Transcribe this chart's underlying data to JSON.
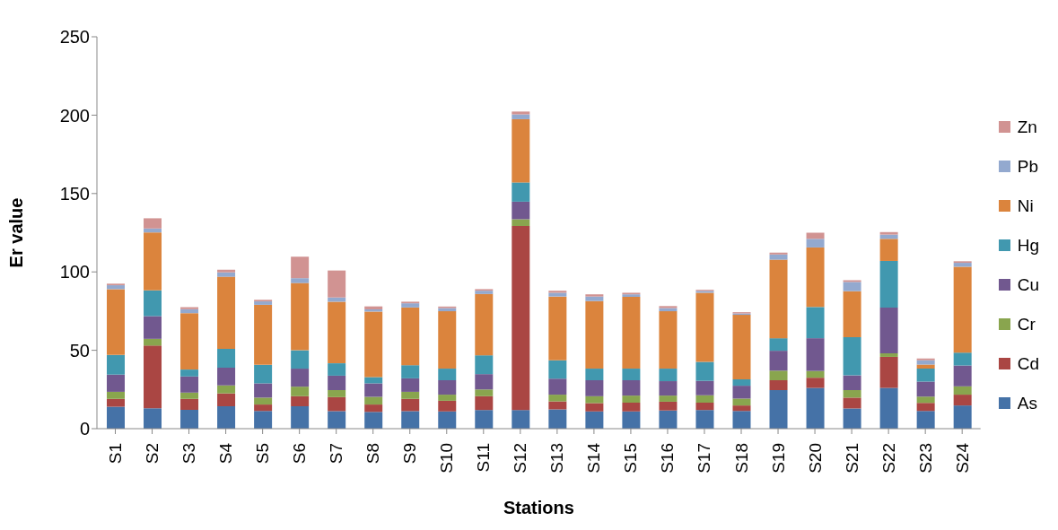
{
  "chart_data": {
    "type": "bar",
    "stacked": true,
    "xlabel": "Stations",
    "ylabel": "Er value",
    "categories": [
      "S1",
      "S2",
      "S3",
      "S4",
      "S5",
      "S6",
      "S7",
      "S8",
      "S9",
      "S10",
      "S11",
      "S12",
      "S13",
      "S14",
      "S15",
      "S16",
      "S17",
      "S18",
      "S19",
      "S20",
      "S21",
      "S22",
      "S23",
      "S24"
    ],
    "series": [
      {
        "name": "As",
        "color": "#4572a7",
        "values": [
          14,
          13,
          12,
          14.3,
          11.3,
          14.3,
          11.2,
          10.7,
          11.2,
          11,
          11.9,
          11.9,
          12.3,
          11,
          11,
          11.6,
          11.9,
          11.3,
          24.6,
          26,
          12.9,
          26,
          11.3,
          14.8
        ]
      },
      {
        "name": "Cd",
        "color": "#aa4643",
        "values": [
          5,
          40,
          7,
          8.2,
          4.1,
          6.4,
          8.9,
          4.7,
          7.8,
          6.8,
          8.8,
          117.4,
          5.1,
          5.3,
          5.6,
          5.6,
          4.7,
          3.5,
          6.3,
          6.5,
          6.9,
          19.8,
          5.1,
          6.9
        ]
      },
      {
        "name": "Cr",
        "color": "#89a54e",
        "values": [
          4.5,
          4.3,
          4,
          5.1,
          4.4,
          6.1,
          4.5,
          4.9,
          4.5,
          3.9,
          4.3,
          4.3,
          4.3,
          4.4,
          4.5,
          3.9,
          4.7,
          4.4,
          6.1,
          4.3,
          4.8,
          2.3,
          4.1,
          5.3
        ]
      },
      {
        "name": "Cu",
        "color": "#71588f",
        "values": [
          11,
          14.5,
          10.3,
          11.3,
          9.1,
          11.5,
          9.2,
          8.6,
          8.6,
          9.2,
          9.8,
          11.2,
          10.2,
          10.2,
          9.8,
          9.2,
          9.2,
          8.2,
          12.7,
          20.9,
          9.4,
          29.2,
          9.6,
          13.3
        ]
      },
      {
        "name": "Hg",
        "color": "#4198af",
        "values": [
          12.5,
          16.4,
          4.4,
          12,
          11.8,
          11.7,
          7.9,
          4,
          8.4,
          7.4,
          12,
          12.3,
          11.7,
          7.4,
          7.4,
          8,
          12.1,
          4.1,
          8,
          19.9,
          24.3,
          29.7,
          8.2,
          8.2
        ]
      },
      {
        "name": "Ni",
        "color": "#db843d",
        "values": [
          42,
          37,
          36,
          46,
          38.3,
          42.9,
          39.3,
          41.8,
          36.8,
          36.6,
          39.1,
          40.3,
          40.7,
          43.1,
          45.8,
          36.6,
          44.1,
          41.1,
          50.1,
          38,
          29.4,
          14.1,
          2.6,
          54.8
        ]
      },
      {
        "name": "Pb",
        "color": "#93a9cf",
        "values": [
          2.5,
          2.5,
          2.5,
          2.8,
          2.2,
          3.1,
          2.7,
          1.4,
          2.7,
          2,
          2.1,
          3.1,
          2.4,
          2.9,
          1.6,
          2,
          1.2,
          0.9,
          3.3,
          5.5,
          5.9,
          2.7,
          2.7,
          2.5
        ]
      },
      {
        "name": "Zn",
        "color": "#d19392",
        "values": [
          1,
          6.5,
          1.3,
          1.7,
          1,
          13.7,
          17.2,
          1.9,
          1,
          1,
          1,
          1.8,
          1.3,
          1.4,
          1,
          1.3,
          0.7,
          0.8,
          1.2,
          3.9,
          1.1,
          1.6,
          1.2,
          1
        ]
      }
    ],
    "ylim": [
      0,
      250
    ],
    "yticks": [
      0,
      50,
      100,
      150,
      200,
      250
    ],
    "grid": false,
    "legend": "right"
  }
}
